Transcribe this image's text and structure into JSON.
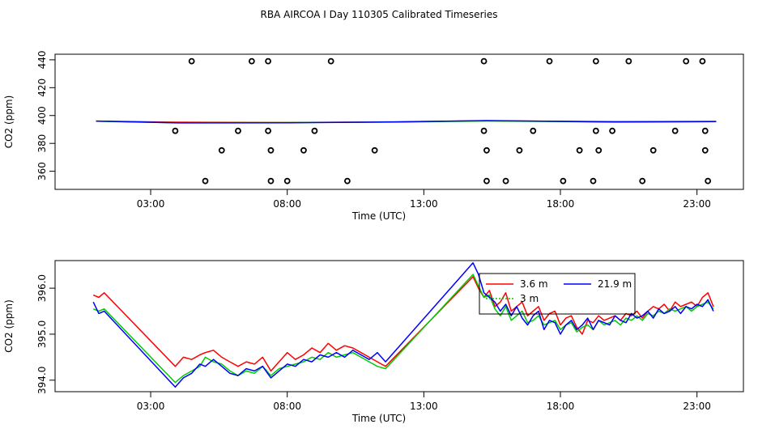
{
  "title": "RBA AIRCOA I  Day 110305  Calibrated Timeseries",
  "chart_data": [
    {
      "type": "scatter",
      "xlabel": "Time (UTC)",
      "ylabel": "CO2 (ppm)",
      "xlim": [
        -0.5,
        24.7
      ],
      "ylim": [
        347,
        444
      ],
      "xticks": [
        3,
        8,
        13,
        18,
        23
      ],
      "xtick_labels": [
        "03:00",
        "08:00",
        "13:00",
        "18:00",
        "23:00"
      ],
      "yticks": [
        360,
        380,
        400,
        420,
        440
      ],
      "ytick_labels": [
        "360",
        "380",
        "400",
        "420",
        "440"
      ],
      "grid": false,
      "series": [
        {
          "color": "#ff0000",
          "x": [
            1.0,
            4.0,
            8.0,
            12.0,
            15.3,
            20.0,
            23.7
          ],
          "y": [
            396.0,
            395.2,
            395.0,
            395.5,
            396.2,
            395.6,
            395.8
          ]
        },
        {
          "color": "#00cc00",
          "x": [
            1.0,
            4.0,
            8.0,
            12.0,
            15.3,
            20.0,
            23.7
          ],
          "y": [
            395.9,
            394.8,
            394.9,
            395.3,
            396.1,
            395.4,
            395.6
          ]
        },
        {
          "color": "#0000ff",
          "x": [
            1.0,
            4.0,
            8.0,
            12.0,
            15.3,
            20.0,
            23.7
          ],
          "y": [
            396.0,
            394.7,
            394.8,
            395.4,
            396.4,
            395.3,
            395.7
          ]
        }
      ],
      "points": [
        {
          "x": 4.5,
          "y": 439
        },
        {
          "x": 6.7,
          "y": 439
        },
        {
          "x": 7.3,
          "y": 439
        },
        {
          "x": 9.6,
          "y": 439
        },
        {
          "x": 15.2,
          "y": 439
        },
        {
          "x": 17.6,
          "y": 439
        },
        {
          "x": 19.3,
          "y": 439
        },
        {
          "x": 20.5,
          "y": 439
        },
        {
          "x": 22.6,
          "y": 439
        },
        {
          "x": 23.2,
          "y": 439
        },
        {
          "x": 3.9,
          "y": 389
        },
        {
          "x": 6.2,
          "y": 389
        },
        {
          "x": 7.3,
          "y": 389
        },
        {
          "x": 9.0,
          "y": 389
        },
        {
          "x": 15.2,
          "y": 389
        },
        {
          "x": 17.0,
          "y": 389
        },
        {
          "x": 19.3,
          "y": 389
        },
        {
          "x": 19.9,
          "y": 389
        },
        {
          "x": 22.2,
          "y": 389
        },
        {
          "x": 23.3,
          "y": 389
        },
        {
          "x": 5.6,
          "y": 375
        },
        {
          "x": 7.4,
          "y": 375
        },
        {
          "x": 8.6,
          "y": 375
        },
        {
          "x": 11.2,
          "y": 375
        },
        {
          "x": 15.3,
          "y": 375
        },
        {
          "x": 16.5,
          "y": 375
        },
        {
          "x": 18.7,
          "y": 375
        },
        {
          "x": 19.4,
          "y": 375
        },
        {
          "x": 21.4,
          "y": 375
        },
        {
          "x": 23.3,
          "y": 375
        },
        {
          "x": 5.0,
          "y": 353
        },
        {
          "x": 7.4,
          "y": 353
        },
        {
          "x": 8.0,
          "y": 353
        },
        {
          "x": 10.2,
          "y": 353
        },
        {
          "x": 15.3,
          "y": 353
        },
        {
          "x": 16.0,
          "y": 353
        },
        {
          "x": 18.1,
          "y": 353
        },
        {
          "x": 19.2,
          "y": 353
        },
        {
          "x": 21.0,
          "y": 353
        },
        {
          "x": 23.4,
          "y": 353
        }
      ]
    },
    {
      "type": "line",
      "xlabel": "Time (UTC)",
      "ylabel": "CO2 (ppm)",
      "xlim": [
        -0.5,
        24.7
      ],
      "ylim": [
        393.75,
        396.6
      ],
      "xticks": [
        3,
        8,
        13,
        18,
        23
      ],
      "xtick_labels": [
        "03:00",
        "08:00",
        "13:00",
        "18:00",
        "23:00"
      ],
      "yticks": [
        394.0,
        395.0,
        396.0
      ],
      "ytick_labels": [
        "394.0",
        "395.0",
        "396.0"
      ],
      "grid": false,
      "legend": {
        "placement": "top-right",
        "entries": [
          {
            "label": "3.6 m",
            "color": "#ff0000",
            "dash": false
          },
          {
            "label": "21.9 m",
            "color": "#0000ff",
            "dash": false
          },
          {
            "label": "3 m",
            "color": "#00cc00",
            "dash": true
          }
        ]
      },
      "series": [
        {
          "color": "#ff0000",
          "x": [
            0.9,
            1.1,
            1.3,
            3.9,
            4.2,
            4.5,
            4.8,
            5.0,
            5.3,
            5.6,
            5.9,
            6.2,
            6.5,
            6.8,
            7.1,
            7.4,
            7.7,
            8.0,
            8.3,
            8.6,
            8.9,
            9.2,
            9.5,
            9.8,
            10.1,
            10.4,
            10.7,
            11.0,
            11.3,
            11.6,
            14.8,
            15.0,
            15.2,
            15.4,
            15.6,
            15.8,
            16.0,
            16.2,
            16.4,
            16.6,
            16.8,
            17.0,
            17.2,
            17.4,
            17.6,
            17.8,
            18.0,
            18.2,
            18.4,
            18.6,
            18.8,
            19.0,
            19.2,
            19.4,
            19.6,
            19.8,
            20.0,
            20.2,
            20.4,
            20.6,
            20.8,
            21.0,
            21.2,
            21.4,
            21.6,
            21.8,
            22.0,
            22.2,
            22.4,
            22.6,
            22.8,
            23.0,
            23.2,
            23.4,
            23.6
          ],
          "y": [
            395.85,
            395.8,
            395.9,
            394.3,
            394.5,
            394.45,
            394.55,
            394.6,
            394.65,
            394.5,
            394.4,
            394.3,
            394.4,
            394.35,
            394.5,
            394.2,
            394.4,
            394.6,
            394.45,
            394.55,
            394.7,
            394.6,
            394.8,
            394.65,
            394.75,
            394.7,
            394.6,
            394.5,
            394.4,
            394.3,
            396.25,
            396.0,
            395.8,
            395.95,
            395.6,
            395.7,
            395.9,
            395.5,
            395.6,
            395.7,
            395.4,
            395.5,
            395.6,
            395.3,
            395.45,
            395.5,
            395.2,
            395.35,
            395.4,
            395.15,
            395.0,
            395.3,
            395.25,
            395.4,
            395.3,
            395.35,
            395.4,
            395.3,
            395.45,
            395.4,
            395.5,
            395.35,
            395.5,
            395.6,
            395.55,
            395.65,
            395.5,
            395.7,
            395.6,
            395.65,
            395.7,
            395.6,
            395.8,
            395.9,
            395.6
          ]
        },
        {
          "color": "#00cc00",
          "x": [
            0.9,
            1.1,
            1.3,
            3.9,
            4.2,
            4.5,
            4.8,
            5.0,
            5.3,
            5.6,
            5.9,
            6.2,
            6.5,
            6.8,
            7.1,
            7.4,
            7.7,
            8.0,
            8.3,
            8.6,
            8.9,
            9.2,
            9.5,
            9.8,
            10.1,
            10.4,
            10.7,
            11.0,
            11.3,
            11.6,
            14.8,
            15.0,
            15.2,
            15.4,
            15.6,
            15.8,
            16.0,
            16.2,
            16.4,
            16.6,
            16.8,
            17.0,
            17.2,
            17.4,
            17.6,
            17.8,
            18.0,
            18.2,
            18.4,
            18.6,
            18.8,
            19.0,
            19.2,
            19.4,
            19.6,
            19.8,
            20.0,
            20.2,
            20.4,
            20.6,
            20.8,
            21.0,
            21.2,
            21.4,
            21.6,
            21.8,
            22.0,
            22.2,
            22.4,
            22.6,
            22.8,
            23.0,
            23.2,
            23.4,
            23.6
          ],
          "y": [
            395.55,
            395.5,
            395.55,
            393.95,
            394.1,
            394.2,
            394.3,
            394.5,
            394.4,
            394.35,
            394.2,
            394.1,
            394.2,
            394.15,
            394.3,
            394.1,
            394.25,
            394.3,
            394.35,
            394.4,
            394.5,
            394.45,
            394.6,
            394.5,
            394.55,
            394.6,
            394.5,
            394.4,
            394.3,
            394.25,
            396.3,
            396.05,
            395.8,
            395.85,
            395.55,
            395.4,
            395.6,
            395.3,
            395.4,
            395.5,
            395.25,
            395.3,
            395.4,
            395.2,
            395.25,
            395.3,
            395.1,
            395.2,
            395.25,
            395.05,
            395.15,
            395.2,
            395.1,
            395.3,
            395.2,
            395.25,
            395.3,
            395.2,
            395.35,
            395.3,
            395.4,
            395.3,
            395.45,
            395.4,
            395.5,
            395.45,
            395.55,
            395.5,
            395.55,
            395.6,
            395.5,
            395.6,
            395.65,
            395.7,
            395.55
          ]
        },
        {
          "color": "#0000ff",
          "x": [
            0.9,
            1.1,
            1.3,
            3.9,
            4.2,
            4.5,
            4.8,
            5.0,
            5.3,
            5.6,
            5.9,
            6.2,
            6.5,
            6.8,
            7.1,
            7.4,
            7.7,
            8.0,
            8.3,
            8.6,
            8.9,
            9.2,
            9.5,
            9.8,
            10.1,
            10.4,
            10.7,
            11.0,
            11.3,
            11.6,
            14.8,
            15.0,
            15.2,
            15.4,
            15.6,
            15.8,
            16.0,
            16.2,
            16.4,
            16.6,
            16.8,
            17.0,
            17.2,
            17.4,
            17.6,
            17.8,
            18.0,
            18.2,
            18.4,
            18.6,
            18.8,
            19.0,
            19.2,
            19.4,
            19.6,
            19.8,
            20.0,
            20.2,
            20.4,
            20.6,
            20.8,
            21.0,
            21.2,
            21.4,
            21.6,
            21.8,
            22.0,
            22.2,
            22.4,
            22.6,
            22.8,
            23.0,
            23.2,
            23.4,
            23.6
          ],
          "y": [
            395.7,
            395.45,
            395.5,
            393.85,
            394.05,
            394.15,
            394.35,
            394.3,
            394.45,
            394.3,
            394.15,
            394.1,
            394.25,
            394.2,
            394.3,
            394.05,
            394.2,
            394.35,
            394.3,
            394.45,
            394.4,
            394.55,
            394.5,
            394.6,
            394.5,
            394.65,
            394.55,
            394.45,
            394.6,
            394.4,
            396.55,
            396.3,
            395.9,
            395.8,
            395.7,
            395.5,
            395.65,
            395.4,
            395.6,
            395.35,
            395.2,
            395.4,
            395.5,
            395.1,
            395.3,
            395.25,
            395.0,
            395.2,
            395.3,
            395.1,
            395.2,
            395.35,
            395.1,
            395.3,
            395.25,
            395.2,
            395.4,
            395.3,
            395.25,
            395.45,
            395.35,
            395.4,
            395.5,
            395.35,
            395.55,
            395.45,
            395.5,
            395.6,
            395.45,
            395.6,
            395.55,
            395.65,
            395.6,
            395.75,
            395.5
          ]
        }
      ]
    }
  ]
}
